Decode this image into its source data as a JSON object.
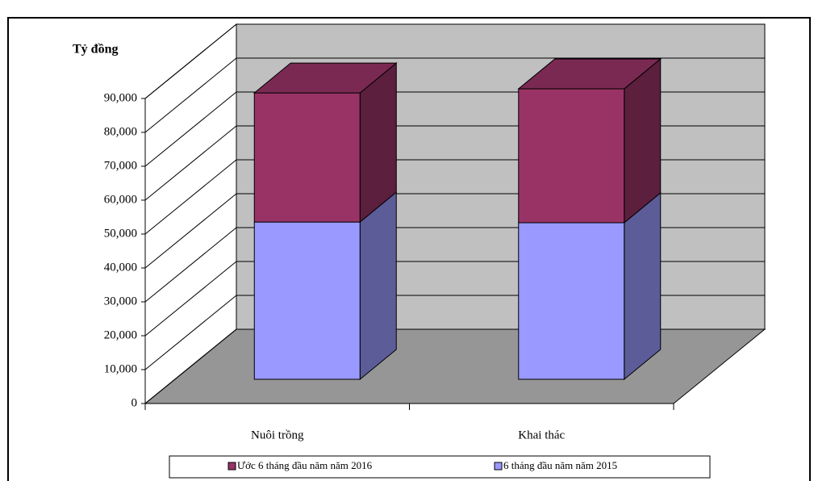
{
  "chart_data": {
    "type": "bar3d_stacked",
    "y_label": "Tỷ đồng",
    "categories": [
      "Nuôi trồng",
      "Khai thác"
    ],
    "series": [
      {
        "name": "6 tháng đầu năm năm 2015",
        "color": "#9999ff",
        "values": [
          46400,
          46200
        ]
      },
      {
        "name": "Ước 6 tháng đầu năm năm 2016",
        "color": "#993366",
        "values": [
          38100,
          39500
        ]
      }
    ],
    "ylim": [
      0,
      90000
    ],
    "yticks": [
      0,
      {
        "value": 10000,
        "label": "10,000"
      },
      {
        "value": 20000,
        "label": "20,000"
      },
      {
        "value": 30000,
        "label": "30,000"
      },
      {
        "value": 40000,
        "label": "40,000"
      },
      {
        "value": 50000,
        "label": "50,000"
      },
      {
        "value": 60000,
        "label": "60,000"
      },
      {
        "value": 70000,
        "label": "70,000"
      },
      {
        "value": 80000,
        "label": "80,000"
      },
      {
        "value": 90000,
        "label": "90,000"
      }
    ],
    "grid": true,
    "legend": "bottom"
  }
}
